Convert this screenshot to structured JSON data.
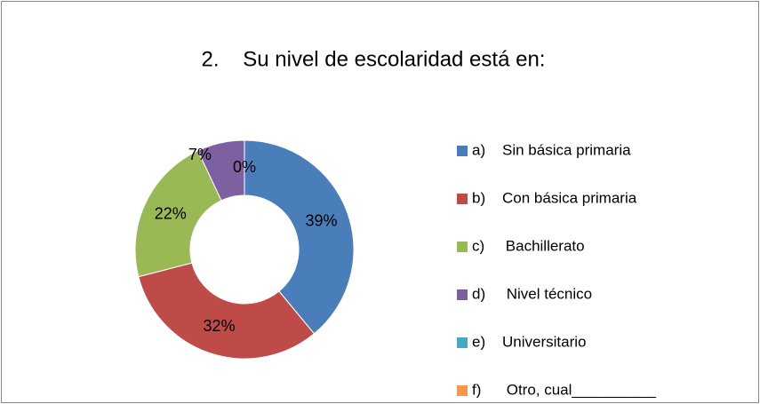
{
  "chart_data": {
    "type": "donut",
    "title": "2.    Su nivel de escolaridad está en:",
    "categories": [
      "a)    Sin básica primaria",
      "b)    Con básica primaria",
      "c)     Bachillerato",
      "d)     Nivel técnico",
      "e)    Universitario",
      "f)      Otro, cual__________"
    ],
    "values": [
      39,
      32,
      22,
      7,
      0,
      0
    ],
    "value_labels": [
      "39%",
      "32%",
      "22%",
      "7%",
      "0%",
      null
    ],
    "colors": [
      "#4a7ebb",
      "#be4b48",
      "#98b954",
      "#7d60a0",
      "#46aac5",
      "#f79646"
    ],
    "legend": "right"
  }
}
